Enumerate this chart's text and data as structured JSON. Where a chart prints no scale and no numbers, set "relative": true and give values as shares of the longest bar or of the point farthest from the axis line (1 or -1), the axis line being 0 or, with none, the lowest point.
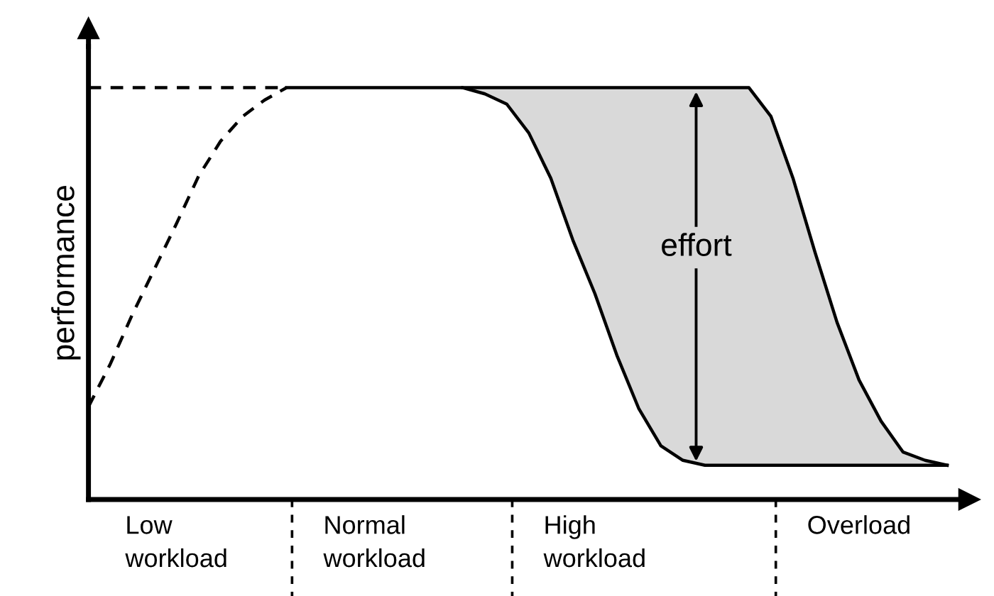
{
  "chart_data": {
    "type": "line",
    "relative": true,
    "ylabel": "performance",
    "categories": [
      null,
      null,
      null,
      null,
      "Low\nworkload",
      null,
      null,
      null,
      null,
      null,
      null,
      null,
      null,
      "Normal\nworkload",
      null,
      null,
      null,
      null,
      null,
      null,
      null,
      null,
      null,
      "High\nworkload",
      null,
      null,
      null,
      null,
      null,
      null,
      null,
      null,
      null,
      null,
      null,
      "Overload",
      null,
      null,
      null,
      null,
      null
    ],
    "series": [
      {
        "color": "#000000",
        "line_style": "dashed",
        "values": [
          0.225,
          0.33,
          0.45,
          0.56,
          0.67,
          0.785,
          0.87,
          0.93,
          0.97,
          1,
          null,
          null,
          null,
          null,
          null,
          null,
          null,
          null,
          null,
          null,
          null,
          null,
          null,
          null,
          null,
          null,
          null,
          null,
          null,
          null,
          null,
          null,
          null,
          null,
          null,
          null,
          null,
          null,
          null,
          null,
          null
        ]
      },
      {
        "color": "#000000",
        "line_style": "dashed",
        "values": [
          1,
          1,
          1,
          1,
          1,
          1,
          1,
          1,
          1,
          1,
          null,
          null,
          null,
          null,
          null,
          null,
          null,
          null,
          null,
          null,
          null,
          null,
          null,
          null,
          null,
          null,
          null,
          null,
          null,
          null,
          null,
          null,
          null,
          null,
          null,
          null,
          null,
          null,
          null,
          null,
          null
        ]
      },
      {
        "color": "#000000",
        "line_style": "solid",
        "values": [
          null,
          null,
          null,
          null,
          null,
          null,
          null,
          null,
          null,
          1,
          1,
          1,
          1,
          1,
          1,
          1,
          1,
          1,
          0.985,
          0.96,
          0.89,
          0.78,
          0.63,
          0.5,
          0.35,
          0.22,
          0.13,
          0.095,
          0.083,
          0.083,
          0.083,
          0.083,
          0.083,
          0.083,
          0.083,
          0.083,
          0.083,
          0.083,
          0.083,
          0.083,
          null
        ]
      },
      {
        "type": "area",
        "color": "#d9d9d9",
        "values": [
          null,
          null,
          null,
          null,
          null,
          null,
          null,
          null,
          null,
          null,
          null,
          null,
          null,
          null,
          null,
          null,
          null,
          1,
          1,
          1,
          1,
          1,
          1,
          1,
          1,
          1,
          1,
          1,
          1,
          1,
          1,
          0.93,
          0.78,
          0.6,
          0.43,
          0.29,
          0.19,
          0.115,
          0.095,
          0.083,
          null
        ]
      }
    ],
    "annotations": [
      "effort"
    ]
  }
}
